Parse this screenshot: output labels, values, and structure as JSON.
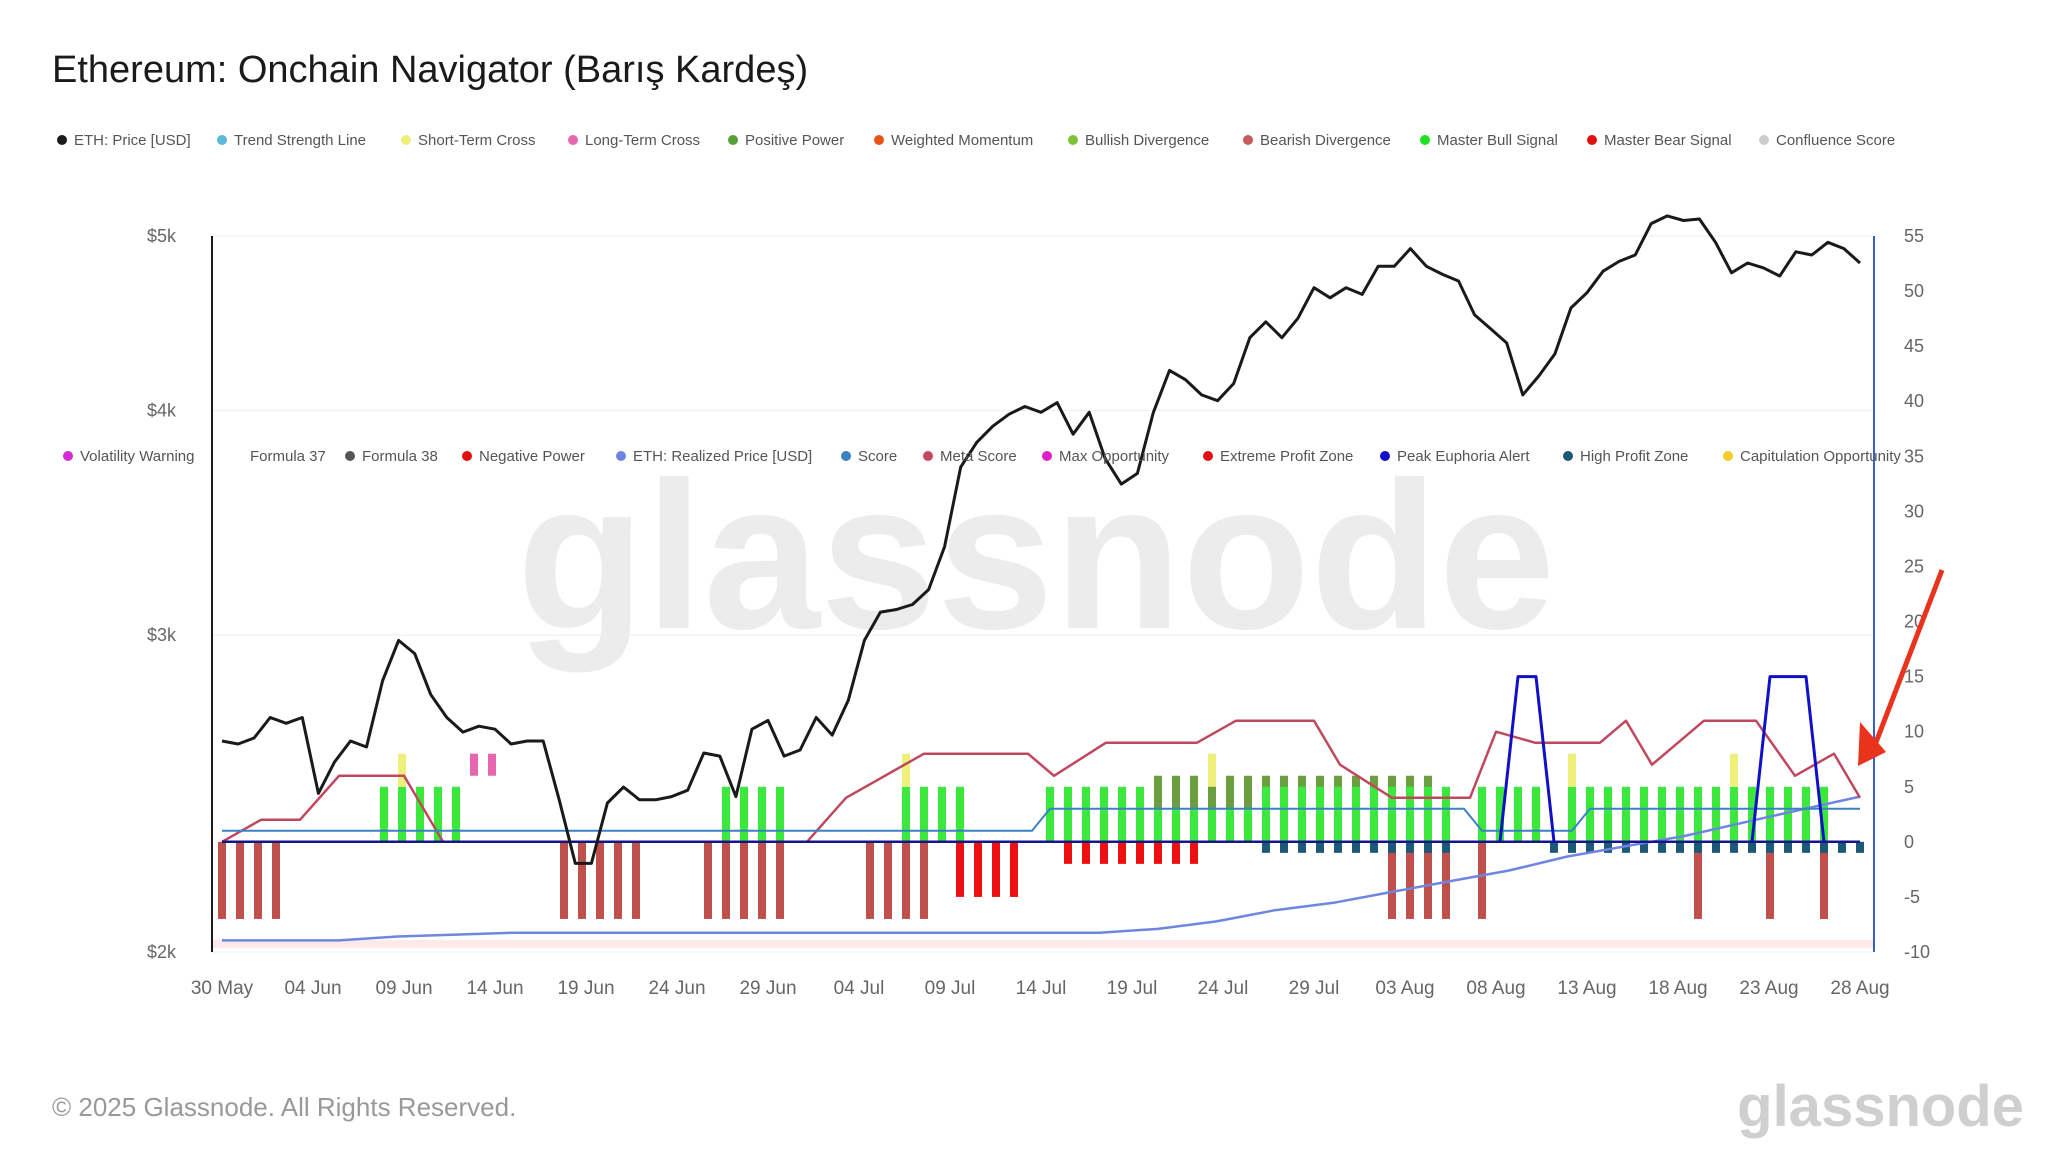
{
  "title": "Ethereum: Onchain Navigator (Barış Kardeş)",
  "footer": {
    "copyright": "© 2025 Glassnode. All Rights Reserved.",
    "logo": "glassnode",
    "watermark": "glassnode"
  },
  "legend_row1": [
    {
      "label": "ETH: Price [USD]",
      "color": "#1a1a1a"
    },
    {
      "label": "Trend Strength Line",
      "color": "#5bb8d6"
    },
    {
      "label": "Short-Term Cross",
      "color": "#eef07a"
    },
    {
      "label": "Long-Term Cross",
      "color": "#e866b0"
    },
    {
      "label": "Positive Power",
      "color": "#5a9e3a"
    },
    {
      "label": "Weighted Momentum",
      "color": "#e8521a"
    },
    {
      "label": "Bullish Divergence",
      "color": "#7ec23a"
    },
    {
      "label": "Bearish Divergence",
      "color": "#c85a58"
    },
    {
      "label": "Master Bull Signal",
      "color": "#22e022"
    },
    {
      "label": "Master Bear Signal",
      "color": "#e01010"
    },
    {
      "label": "Confluence Score",
      "color": "#cccccc"
    }
  ],
  "legend_row2": [
    {
      "label": "Volatility Warning",
      "color": "#d42ad4"
    },
    {
      "label": "Formula 37",
      "color": ""
    },
    {
      "label": "Formula 38",
      "color": "#555555"
    },
    {
      "label": "Negative Power",
      "color": "#e01010"
    },
    {
      "label": "ETH: Realized Price [USD]",
      "color": "#6e86e0"
    },
    {
      "label": "Score",
      "color": "#3a82c4"
    },
    {
      "label": "Meta Score",
      "color": "#c0485e"
    },
    {
      "label": "Max Opportunity",
      "color": "#e020c8"
    },
    {
      "label": "Extreme Profit Zone",
      "color": "#e01010"
    },
    {
      "label": "Peak Euphoria Alert",
      "color": "#1010c8"
    },
    {
      "label": "High Profit Zone",
      "color": "#1c5878"
    },
    {
      "label": "Capitulation Opportunity",
      "color": "#f0d020"
    }
  ],
  "chart_data": {
    "type": "line",
    "x_ticks": [
      "30 May",
      "04 Jun",
      "09 Jun",
      "14 Jun",
      "19 Jun",
      "24 Jun",
      "29 Jun",
      "04 Jul",
      "09 Jul",
      "14 Jul",
      "19 Jul",
      "24 Jul",
      "29 Jul",
      "03 Aug",
      "08 Aug",
      "13 Aug",
      "18 Aug",
      "23 Aug",
      "28 Aug"
    ],
    "y_left": {
      "scale": "log",
      "ticks": [
        "$2k",
        "$3k",
        "$4k",
        "$5k"
      ],
      "range": [
        2000,
        5000
      ]
    },
    "y_right": {
      "ticks": [
        "-10",
        "-5",
        "0",
        "5",
        "10",
        "15",
        "20",
        "25",
        "30",
        "35",
        "40",
        "45",
        "50",
        "55"
      ],
      "range": [
        -10,
        55
      ]
    },
    "grid": "horizontal",
    "series": [
      {
        "name": "ETH: Price [USD]",
        "axis": "left",
        "color": "#1a1a1a",
        "values": [
          2620,
          2610,
          2630,
          2700,
          2680,
          2700,
          2450,
          2550,
          2620,
          2600,
          2830,
          2980,
          2930,
          2780,
          2700,
          2650,
          2670,
          2660,
          2610,
          2620,
          2620,
          2430,
          2240,
          2240,
          2420,
          2470,
          2430,
          2430,
          2440,
          2460,
          2580,
          2570,
          2440,
          2660,
          2690,
          2570,
          2590,
          2700,
          2640,
          2760,
          2980,
          3090,
          3100,
          3120,
          3180,
          3360,
          3720,
          3840,
          3920,
          3980,
          4020,
          3990,
          4040,
          3880,
          3990,
          3760,
          3640,
          3690,
          3990,
          4210,
          4160,
          4080,
          4050,
          4140,
          4390,
          4480,
          4390,
          4500,
          4680,
          4620,
          4680,
          4640,
          4810,
          4810,
          4920,
          4810,
          4760,
          4720,
          4520,
          4440,
          4360,
          4080,
          4180,
          4300,
          4560,
          4650,
          4780,
          4840,
          4880,
          5080,
          5130,
          5100,
          5110,
          4960,
          4770,
          4830,
          4800,
          4750,
          4900,
          4880,
          4960,
          4920,
          4830
        ],
        "display_window": {
          "start_index": 0,
          "note": "daily from 30 May"
        }
      },
      {
        "name": "ETH: Realized Price [USD]",
        "axis": "left",
        "color": "#6e86e0",
        "values": [
          2030,
          2030,
          2030,
          2040,
          2045,
          2050,
          2050,
          2050,
          2050,
          2050,
          2050,
          2050,
          2050,
          2050,
          2050,
          2050,
          2060,
          2080,
          2110,
          2130,
          2160,
          2190,
          2220,
          2260,
          2290,
          2320,
          2360,
          2400,
          2440
        ]
      },
      {
        "name": "Meta Score",
        "axis": "right",
        "color": "#c0485e"
      },
      {
        "name": "Trend Strength Line",
        "axis": "right",
        "color": "#5bb8d6"
      },
      {
        "name": "Score",
        "axis": "right",
        "color": "#3a82c4"
      },
      {
        "name": "Peak Euphoria Alert",
        "axis": "right",
        "color": "#1010c8"
      }
    ]
  }
}
